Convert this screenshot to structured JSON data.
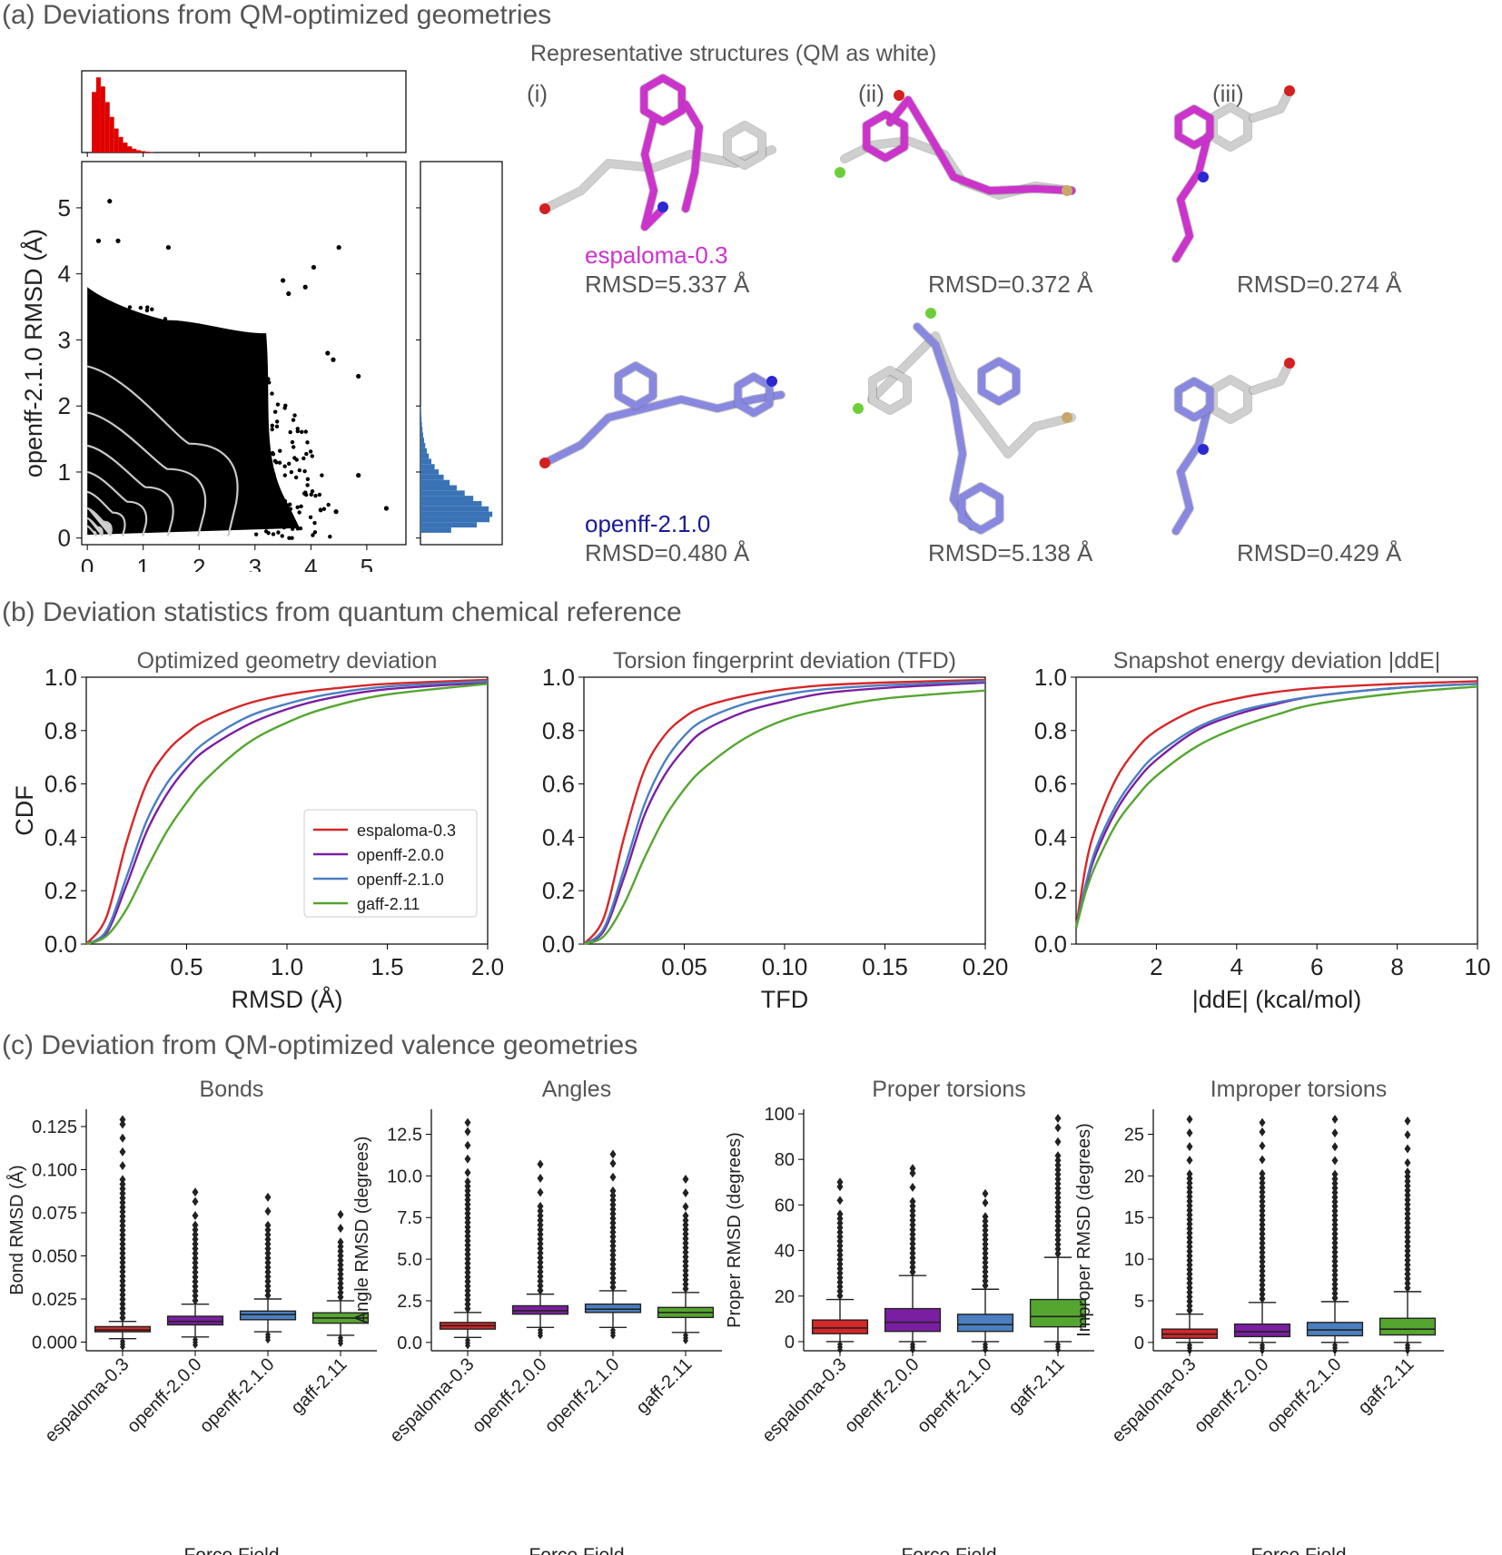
{
  "panel_a": {
    "title": "(a) Deviations from QM-optimized geometries",
    "rep_title": "Representative structures (QM as white)",
    "rep_labels": [
      "(i)",
      "(ii)",
      "(iii)"
    ],
    "espaloma_name": "espaloma-0.3",
    "openff_name": "openff-2.1.0",
    "espaloma_color": "#cc33cc",
    "openff_color": "#1a1a99",
    "rmsd_top": [
      "RMSD=5.337 Å",
      "RMSD=0.372 Å",
      "RMSD=0.274 Å"
    ],
    "rmsd_bottom": [
      "RMSD=0.480 Å",
      "RMSD=5.138 Å",
      "RMSD=0.429 Å"
    ]
  },
  "panel_b": {
    "title": "(b) Deviation statistics from quantum chemical reference"
  },
  "panel_c": {
    "title": "(c) Deviation from QM-optimized valence geometries"
  },
  "colors": {
    "espaloma-0.3": "#d62728",
    "openff-2.0.0": "#7b1fa2",
    "openff-2.1.0": "#4a7fc1",
    "gaff-2.11": "#55a630"
  },
  "chart_data": [
    {
      "type": "scatter",
      "xlabel": "espaloma-0.3 RMSD (Å)",
      "ylabel": "openff-2.1.0 RMSD (Å)",
      "xlim": [
        -0.1,
        5.7
      ],
      "ylim": [
        -0.1,
        5.7
      ],
      "xticks": [
        0,
        1,
        2,
        3,
        4,
        5
      ],
      "yticks": [
        0,
        1,
        2,
        3,
        4,
        5
      ],
      "outliers": [
        [
          0.4,
          5.1
        ],
        [
          0.2,
          4.5
        ],
        [
          0.55,
          4.5
        ],
        [
          1.45,
          4.4
        ],
        [
          4.5,
          4.4
        ],
        [
          4.05,
          4.1
        ],
        [
          3.5,
          3.9
        ],
        [
          3.9,
          3.8
        ],
        [
          3.6,
          3.7
        ],
        [
          4.3,
          2.8
        ],
        [
          4.4,
          2.7
        ],
        [
          4.85,
          2.45
        ],
        [
          4.85,
          0.95
        ],
        [
          5.35,
          0.45
        ],
        [
          4.45,
          0.4
        ]
      ],
      "top_histogram": {
        "color": "#e00000"
      },
      "right_histogram": {
        "color": "#3a73b5"
      }
    },
    {
      "type": "line",
      "title": "Optimized geometry deviation",
      "xlabel": "RMSD (Å)",
      "ylabel": "CDF",
      "xlim": [
        0,
        2.0
      ],
      "ylim": [
        0,
        1.0
      ],
      "xticks": [
        "0.5",
        "1.0",
        "1.5",
        "2.0"
      ],
      "yticks": [
        "0.0",
        "0.2",
        "0.4",
        "0.6",
        "0.8",
        "1.0"
      ],
      "series": [
        {
          "name": "espaloma-0.3",
          "x": [
            0,
            0.1,
            0.2,
            0.3,
            0.4,
            0.5,
            0.6,
            0.8,
            1.0,
            1.2,
            1.5,
            2.0
          ],
          "y": [
            0,
            0.1,
            0.38,
            0.6,
            0.72,
            0.79,
            0.84,
            0.9,
            0.935,
            0.955,
            0.975,
            0.99
          ]
        },
        {
          "name": "openff-2.0.0",
          "x": [
            0,
            0.1,
            0.2,
            0.3,
            0.4,
            0.5,
            0.6,
            0.8,
            1.0,
            1.2,
            1.5,
            2.0
          ],
          "y": [
            0,
            0.04,
            0.22,
            0.42,
            0.56,
            0.66,
            0.73,
            0.82,
            0.88,
            0.92,
            0.955,
            0.98
          ]
        },
        {
          "name": "openff-2.1.0",
          "x": [
            0,
            0.1,
            0.2,
            0.3,
            0.4,
            0.5,
            0.6,
            0.8,
            1.0,
            1.2,
            1.5,
            2.0
          ],
          "y": [
            0,
            0.05,
            0.25,
            0.46,
            0.6,
            0.69,
            0.76,
            0.85,
            0.9,
            0.935,
            0.965,
            0.985
          ]
        },
        {
          "name": "gaff-2.11",
          "x": [
            0,
            0.1,
            0.2,
            0.3,
            0.4,
            0.5,
            0.6,
            0.8,
            1.0,
            1.2,
            1.5,
            2.0
          ],
          "y": [
            0,
            0.03,
            0.13,
            0.28,
            0.42,
            0.53,
            0.62,
            0.75,
            0.83,
            0.885,
            0.935,
            0.975
          ]
        }
      ],
      "legend": "lower-right"
    },
    {
      "type": "line",
      "title": "Torsion fingerprint deviation (TFD)",
      "xlabel": "TFD",
      "xlim": [
        0,
        0.2
      ],
      "ylim": [
        0,
        1.0
      ],
      "xticks": [
        "0.05",
        "0.10",
        "0.15",
        "0.20"
      ],
      "yticks": [
        "0.0",
        "0.2",
        "0.4",
        "0.6",
        "0.8",
        "1.0"
      ],
      "series": [
        {
          "name": "espaloma-0.3",
          "x": [
            0,
            0.01,
            0.02,
            0.03,
            0.04,
            0.05,
            0.06,
            0.08,
            0.1,
            0.12,
            0.15,
            0.2
          ],
          "y": [
            0,
            0.1,
            0.4,
            0.65,
            0.78,
            0.85,
            0.89,
            0.93,
            0.955,
            0.97,
            0.98,
            0.99
          ]
        },
        {
          "name": "openff-2.0.0",
          "x": [
            0,
            0.01,
            0.02,
            0.03,
            0.04,
            0.05,
            0.06,
            0.08,
            0.1,
            0.12,
            0.15,
            0.2
          ],
          "y": [
            0,
            0.05,
            0.25,
            0.48,
            0.63,
            0.73,
            0.8,
            0.87,
            0.91,
            0.94,
            0.96,
            0.98
          ]
        },
        {
          "name": "openff-2.1.0",
          "x": [
            0,
            0.01,
            0.02,
            0.03,
            0.04,
            0.05,
            0.06,
            0.08,
            0.1,
            0.12,
            0.15,
            0.2
          ],
          "y": [
            0,
            0.06,
            0.28,
            0.52,
            0.68,
            0.78,
            0.84,
            0.9,
            0.935,
            0.955,
            0.97,
            0.985
          ]
        },
        {
          "name": "gaff-2.11",
          "x": [
            0,
            0.01,
            0.02,
            0.03,
            0.04,
            0.05,
            0.06,
            0.08,
            0.1,
            0.12,
            0.15,
            0.2
          ],
          "y": [
            0,
            0.03,
            0.15,
            0.32,
            0.47,
            0.58,
            0.66,
            0.77,
            0.84,
            0.88,
            0.92,
            0.95
          ]
        }
      ]
    },
    {
      "type": "line",
      "title": "Snapshot energy deviation |ddE|",
      "xlabel": "|ddE| (kcal/mol)",
      "xlim": [
        0,
        10
      ],
      "ylim": [
        0,
        1.0
      ],
      "xticks": [
        "2",
        "4",
        "6",
        "8",
        "10"
      ],
      "yticks": [
        "0.0",
        "0.2",
        "0.4",
        "0.6",
        "0.8",
        "1.0"
      ],
      "series": [
        {
          "name": "espaloma-0.3",
          "x": [
            0,
            0.25,
            0.5,
            1,
            1.5,
            2,
            3,
            4,
            5,
            6,
            8,
            10
          ],
          "y": [
            0.06,
            0.3,
            0.44,
            0.62,
            0.73,
            0.8,
            0.88,
            0.92,
            0.945,
            0.96,
            0.975,
            0.985
          ]
        },
        {
          "name": "openff-2.0.0",
          "x": [
            0,
            0.25,
            0.5,
            1,
            1.5,
            2,
            3,
            4,
            5,
            6,
            8,
            10
          ],
          "y": [
            0.06,
            0.22,
            0.34,
            0.5,
            0.61,
            0.69,
            0.8,
            0.86,
            0.9,
            0.93,
            0.96,
            0.975
          ]
        },
        {
          "name": "openff-2.1.0",
          "x": [
            0,
            0.25,
            0.5,
            1,
            1.5,
            2,
            3,
            4,
            5,
            6,
            8,
            10
          ],
          "y": [
            0.06,
            0.23,
            0.36,
            0.52,
            0.63,
            0.71,
            0.81,
            0.87,
            0.905,
            0.93,
            0.96,
            0.975
          ]
        },
        {
          "name": "gaff-2.11",
          "x": [
            0,
            0.25,
            0.5,
            1,
            1.5,
            2,
            3,
            4,
            5,
            6,
            8,
            10
          ],
          "y": [
            0.06,
            0.2,
            0.3,
            0.45,
            0.55,
            0.63,
            0.74,
            0.81,
            0.86,
            0.9,
            0.94,
            0.965
          ]
        }
      ]
    },
    {
      "type": "box",
      "title": "Bonds",
      "xlabel": "Force Field",
      "ylabel": "Bond RMSD (Å)",
      "ylim": [
        -0.005,
        0.135
      ],
      "yticks": [
        "0.000",
        "0.025",
        "0.050",
        "0.075",
        "0.100",
        "0.125"
      ],
      "ytick_values": [
        0,
        0.025,
        0.05,
        0.075,
        0.1,
        0.125
      ],
      "categories": [
        "espaloma-0.3",
        "openff-2.0.0",
        "openff-2.1.0",
        "gaff-2.11"
      ],
      "boxes": [
        {
          "min": 0.002,
          "q1": 0.006,
          "median": 0.007,
          "q3": 0.009,
          "max": 0.012,
          "flier_max": 0.129
        },
        {
          "min": 0.003,
          "q1": 0.01,
          "median": 0.012,
          "q3": 0.015,
          "max": 0.022,
          "flier_max": 0.087
        },
        {
          "min": 0.006,
          "q1": 0.013,
          "median": 0.016,
          "q3": 0.018,
          "max": 0.025,
          "flier_max": 0.084
        },
        {
          "min": 0.004,
          "q1": 0.011,
          "median": 0.014,
          "q3": 0.017,
          "max": 0.024,
          "flier_max": 0.074
        }
      ]
    },
    {
      "type": "box",
      "title": "Angles",
      "xlabel": "Force Field",
      "ylabel": "Angle RMSD (degrees)",
      "ylim": [
        -0.5,
        14
      ],
      "yticks": [
        "0.0",
        "2.5",
        "5.0",
        "7.5",
        "10.0",
        "12.5"
      ],
      "ytick_values": [
        0,
        2.5,
        5,
        7.5,
        10,
        12.5
      ],
      "categories": [
        "espaloma-0.3",
        "openff-2.0.0",
        "openff-2.1.0",
        "gaff-2.11"
      ],
      "boxes": [
        {
          "min": 0.3,
          "q1": 0.8,
          "median": 1.0,
          "q3": 1.2,
          "max": 1.8,
          "flier_max": 13.2
        },
        {
          "min": 0.9,
          "q1": 1.7,
          "median": 1.9,
          "q3": 2.2,
          "max": 2.9,
          "flier_max": 10.7
        },
        {
          "min": 0.9,
          "q1": 1.8,
          "median": 2.0,
          "q3": 2.3,
          "max": 3.1,
          "flier_max": 11.3
        },
        {
          "min": 0.6,
          "q1": 1.5,
          "median": 1.8,
          "q3": 2.1,
          "max": 3.0,
          "flier_max": 9.8
        }
      ]
    },
    {
      "type": "box",
      "title": "Proper torsions",
      "xlabel": "Force Field",
      "ylabel": "Proper RMSD (degrees)",
      "ylim": [
        -4,
        102
      ],
      "yticks": [
        "0",
        "20",
        "40",
        "60",
        "80",
        "100"
      ],
      "ytick_values": [
        0,
        20,
        40,
        60,
        80,
        100
      ],
      "categories": [
        "espaloma-0.3",
        "openff-2.0.0",
        "openff-2.1.0",
        "gaff-2.11"
      ],
      "boxes": [
        {
          "min": 0,
          "q1": 3.5,
          "median": 6,
          "q3": 9.5,
          "max": 18.5,
          "flier_max": 70
        },
        {
          "min": 0,
          "q1": 4.5,
          "median": 8.5,
          "q3": 14.5,
          "max": 29,
          "flier_max": 76
        },
        {
          "min": 0,
          "q1": 4.5,
          "median": 7.5,
          "q3": 12,
          "max": 23,
          "flier_max": 65
        },
        {
          "min": 0,
          "q1": 6.5,
          "median": 11,
          "q3": 18.5,
          "max": 37,
          "flier_max": 98
        }
      ]
    },
    {
      "type": "box",
      "title": "Improper torsions",
      "xlabel": "Force Field",
      "ylabel": "Improper RMSD (degrees)",
      "ylim": [
        -1,
        28
      ],
      "yticks": [
        "0",
        "5",
        "10",
        "15",
        "20",
        "25"
      ],
      "ytick_values": [
        0,
        5,
        10,
        15,
        20,
        25
      ],
      "categories": [
        "espaloma-0.3",
        "openff-2.0.0",
        "openff-2.1.0",
        "gaff-2.11"
      ],
      "boxes": [
        {
          "min": 0,
          "q1": 0.5,
          "median": 1.0,
          "q3": 1.6,
          "max": 3.4,
          "flier_max": 26.8
        },
        {
          "min": 0,
          "q1": 0.7,
          "median": 1.3,
          "q3": 2.2,
          "max": 4.8,
          "flier_max": 26.4
        },
        {
          "min": 0,
          "q1": 0.8,
          "median": 1.5,
          "q3": 2.4,
          "max": 4.9,
          "flier_max": 26.8
        },
        {
          "min": 0,
          "q1": 0.9,
          "median": 1.6,
          "q3": 2.9,
          "max": 6.1,
          "flier_max": 26.6
        }
      ]
    }
  ]
}
